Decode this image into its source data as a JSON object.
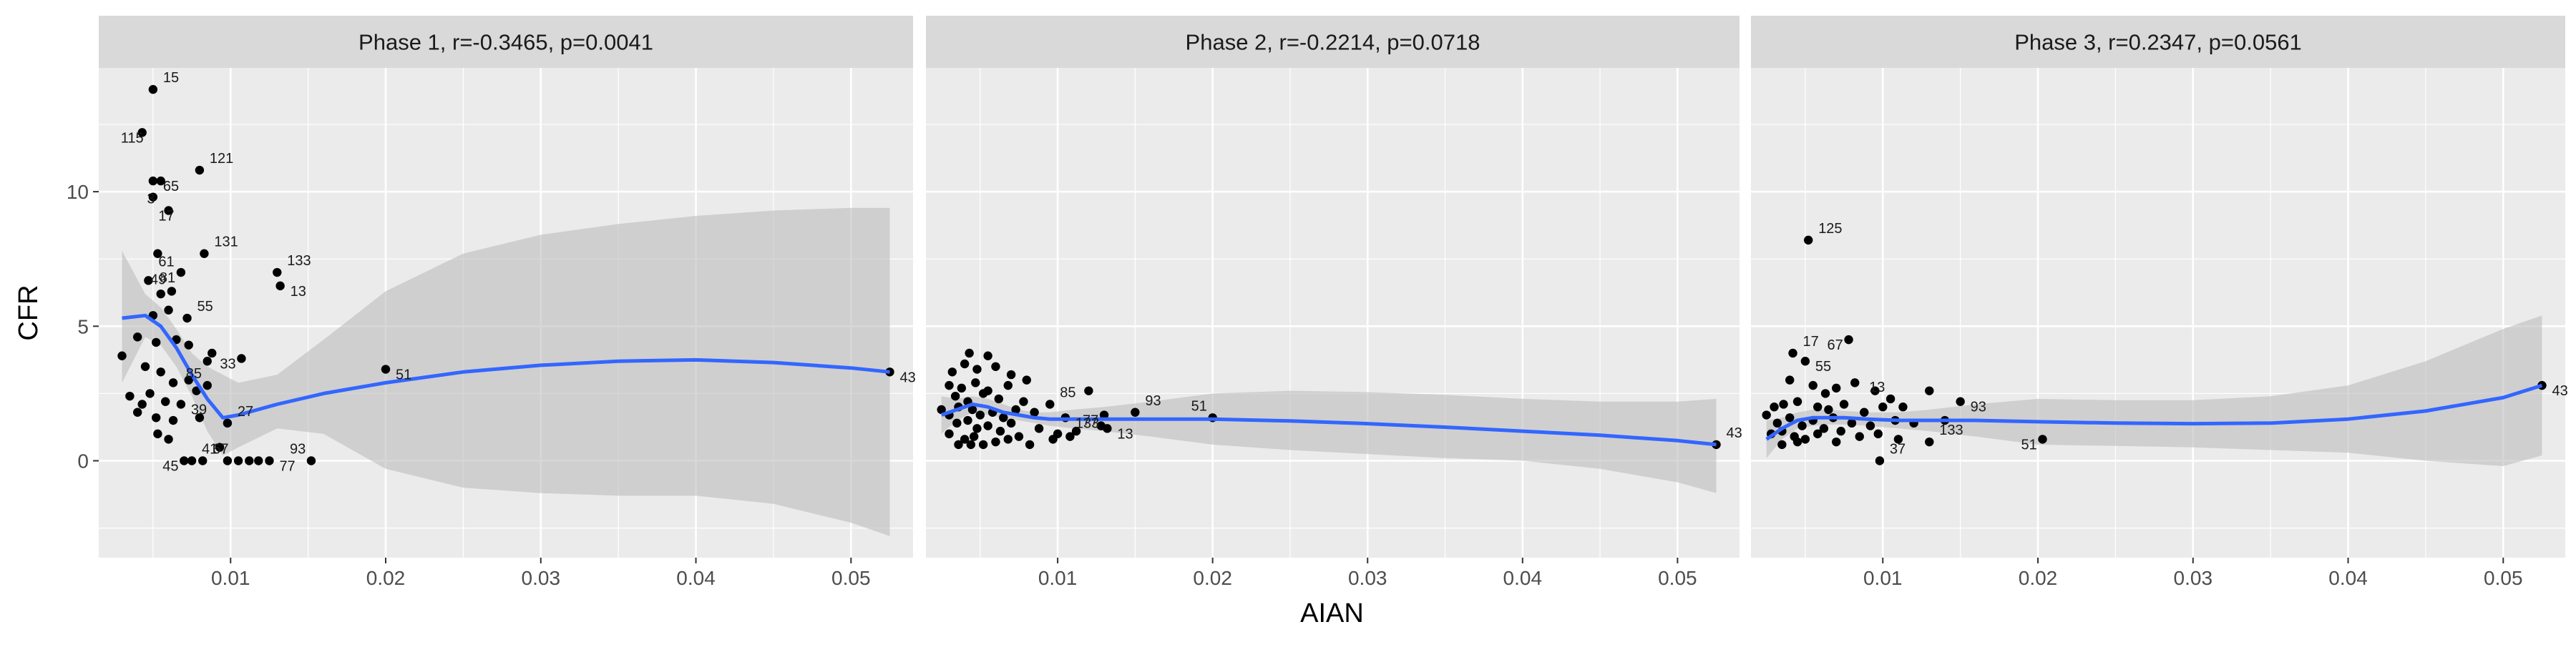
{
  "chart_data": {
    "type": "scatter",
    "layout": "three faceted panels side by side, shared y axis",
    "xlabel": "AIAN",
    "ylabel": "CFR",
    "xlim": [
      0.0015,
      0.054
    ],
    "ylim": [
      -3.6,
      14.6
    ],
    "x_ticks": [
      0.01,
      0.02,
      0.03,
      0.04,
      0.05
    ],
    "x_tick_labels": [
      "0.01",
      "0.02",
      "0.03",
      "0.04",
      "0.05"
    ],
    "y_ticks": [
      0,
      5,
      10
    ],
    "y_tick_labels": [
      "0",
      "5",
      "10"
    ],
    "grid": true,
    "theme": "grey panel background with white gridlines, grey facet strips",
    "smoother": "loess curve with shaded confidence band",
    "colors": {
      "points": "#000000",
      "smooth_line": "#3366ff",
      "band": "#bdbdbd",
      "panel_bg": "#ebebeb",
      "strip_bg": "#d9d9d9",
      "grid": "#ffffff",
      "label_text": "#1a1a1a"
    },
    "panels": [
      {
        "title": "Phase 1, r=-0.3465, p=0.0041",
        "points": [
          [
            0.005,
            13.8
          ],
          [
            0.0043,
            12.2
          ],
          [
            0.008,
            10.8
          ],
          [
            0.005,
            10.4
          ],
          [
            0.0055,
            10.4
          ],
          [
            0.005,
            9.8
          ],
          [
            0.006,
            9.3
          ],
          [
            0.0083,
            7.7
          ],
          [
            0.0068,
            7.0
          ],
          [
            0.013,
            7.0
          ],
          [
            0.0132,
            6.5
          ],
          [
            0.0053,
            7.7
          ],
          [
            0.0047,
            6.7
          ],
          [
            0.0055,
            6.2
          ],
          [
            0.0062,
            6.3
          ],
          [
            0.005,
            5.4
          ],
          [
            0.006,
            5.6
          ],
          [
            0.0072,
            5.3
          ],
          [
            0.004,
            4.6
          ],
          [
            0.0052,
            4.4
          ],
          [
            0.0065,
            4.5
          ],
          [
            0.0073,
            4.3
          ],
          [
            0.0085,
            3.7
          ],
          [
            0.0088,
            4.0
          ],
          [
            0.0107,
            3.8
          ],
          [
            0.003,
            3.9
          ],
          [
            0.0045,
            3.5
          ],
          [
            0.0055,
            3.3
          ],
          [
            0.0063,
            2.9
          ],
          [
            0.0073,
            3.0
          ],
          [
            0.0078,
            2.6
          ],
          [
            0.0085,
            2.8
          ],
          [
            0.0035,
            2.4
          ],
          [
            0.0043,
            2.1
          ],
          [
            0.0048,
            2.5
          ],
          [
            0.0058,
            2.2
          ],
          [
            0.0068,
            2.1
          ],
          [
            0.004,
            1.8
          ],
          [
            0.0052,
            1.6
          ],
          [
            0.0063,
            1.5
          ],
          [
            0.008,
            1.6
          ],
          [
            0.0098,
            1.4
          ],
          [
            0.006,
            0.8
          ],
          [
            0.0053,
            1.0
          ],
          [
            0.0093,
            0.5
          ],
          [
            0.007,
            0.0
          ],
          [
            0.0075,
            0.0
          ],
          [
            0.0082,
            0.0
          ],
          [
            0.0098,
            0.0
          ],
          [
            0.0105,
            0.0
          ],
          [
            0.0112,
            0.0
          ],
          [
            0.0118,
            0.0
          ],
          [
            0.0125,
            0.0
          ],
          [
            0.0152,
            0.0
          ],
          [
            0.02,
            3.4
          ],
          [
            0.0525,
            3.3
          ]
        ],
        "point_labels": [
          {
            "text": "15",
            "x": 0.005,
            "y": 13.8
          },
          {
            "text": "115",
            "x": 0.0043,
            "y": 12.2
          },
          {
            "text": "121",
            "x": 0.008,
            "y": 10.8
          },
          {
            "text": "65",
            "x": 0.005,
            "y": 10.4
          },
          {
            "text": "3",
            "x": 0.006,
            "y": 9.3
          },
          {
            "text": "17",
            "x": 0.0047,
            "y": 9.3
          },
          {
            "text": "131",
            "x": 0.0083,
            "y": 7.7
          },
          {
            "text": "81",
            "x": 0.0068,
            "y": 7.0
          },
          {
            "text": "133",
            "x": 0.013,
            "y": 7.0
          },
          {
            "text": "61",
            "x": 0.0047,
            "y": 7.6
          },
          {
            "text": "49",
            "x": 0.0062,
            "y": 6.3
          },
          {
            "text": "13",
            "x": 0.0132,
            "y": 6.5
          },
          {
            "text": "55",
            "x": 0.0072,
            "y": 5.3
          },
          {
            "text": "33",
            "x": 0.0107,
            "y": 3.8
          },
          {
            "text": "27",
            "x": 0.0098,
            "y": 1.4
          },
          {
            "text": "51",
            "x": 0.02,
            "y": 3.4
          },
          {
            "text": "85",
            "x": 0.0085,
            "y": 2.8
          },
          {
            "text": "39",
            "x": 0.0068,
            "y": 2.1
          },
          {
            "text": "41",
            "x": 0.0075,
            "y": 0.0
          },
          {
            "text": "45",
            "x": 0.007,
            "y": 0.0
          },
          {
            "text": "67",
            "x": 0.0082,
            "y": 0.0
          },
          {
            "text": "77",
            "x": 0.0125,
            "y": 0.0
          },
          {
            "text": "93",
            "x": 0.0152,
            "y": 0.0
          },
          {
            "text": "43",
            "x": 0.0525,
            "y": 3.3
          }
        ],
        "smooth": {
          "x": [
            0.003,
            0.0045,
            0.0055,
            0.0065,
            0.0075,
            0.0085,
            0.0095,
            0.0105,
            0.013,
            0.016,
            0.02,
            0.025,
            0.03,
            0.035,
            0.04,
            0.045,
            0.05,
            0.0525
          ],
          "y": [
            5.3,
            5.4,
            5.0,
            4.2,
            3.2,
            2.3,
            1.6,
            1.7,
            2.1,
            2.5,
            2.9,
            3.3,
            3.55,
            3.7,
            3.75,
            3.65,
            3.45,
            3.3
          ],
          "lower": [
            2.9,
            4.6,
            4.3,
            3.5,
            2.4,
            1.1,
            0.2,
            0.5,
            1.2,
            1.0,
            -0.3,
            -1.0,
            -1.2,
            -1.3,
            -1.3,
            -1.6,
            -2.3,
            -2.8
          ],
          "upper": [
            7.8,
            6.2,
            5.7,
            4.9,
            4.0,
            3.5,
            3.2,
            2.9,
            3.2,
            4.5,
            6.3,
            7.7,
            8.4,
            8.8,
            9.1,
            9.3,
            9.4,
            9.4
          ]
        }
      },
      {
        "title": "Phase 2, r=-0.2214, p=0.0718",
        "points": [
          [
            0.004,
            3.6
          ],
          [
            0.0043,
            4.0
          ],
          [
            0.0055,
            3.9
          ],
          [
            0.0032,
            3.3
          ],
          [
            0.0048,
            3.4
          ],
          [
            0.006,
            3.5
          ],
          [
            0.007,
            3.2
          ],
          [
            0.008,
            3.0
          ],
          [
            0.003,
            2.8
          ],
          [
            0.0038,
            2.7
          ],
          [
            0.0047,
            2.9
          ],
          [
            0.0055,
            2.6
          ],
          [
            0.0068,
            2.8
          ],
          [
            0.012,
            2.6
          ],
          [
            0.0034,
            2.4
          ],
          [
            0.0042,
            2.2
          ],
          [
            0.0052,
            2.5
          ],
          [
            0.0062,
            2.3
          ],
          [
            0.0078,
            2.2
          ],
          [
            0.0095,
            2.1
          ],
          [
            0.0025,
            1.9
          ],
          [
            0.003,
            1.7
          ],
          [
            0.0036,
            2.0
          ],
          [
            0.0045,
            1.9
          ],
          [
            0.005,
            1.7
          ],
          [
            0.0058,
            1.8
          ],
          [
            0.0065,
            1.6
          ],
          [
            0.0073,
            1.9
          ],
          [
            0.0085,
            1.8
          ],
          [
            0.0105,
            1.6
          ],
          [
            0.013,
            1.7
          ],
          [
            0.015,
            1.8
          ],
          [
            0.0035,
            1.4
          ],
          [
            0.0042,
            1.5
          ],
          [
            0.0048,
            1.2
          ],
          [
            0.0055,
            1.3
          ],
          [
            0.0063,
            1.1
          ],
          [
            0.007,
            1.4
          ],
          [
            0.0088,
            1.2
          ],
          [
            0.01,
            1.0
          ],
          [
            0.0112,
            1.1
          ],
          [
            0.0128,
            1.3
          ],
          [
            0.003,
            1.0
          ],
          [
            0.004,
            0.8
          ],
          [
            0.0046,
            0.9
          ],
          [
            0.0052,
            0.6
          ],
          [
            0.006,
            0.7
          ],
          [
            0.0068,
            0.8
          ],
          [
            0.0075,
            0.9
          ],
          [
            0.0082,
            0.6
          ],
          [
            0.0097,
            0.8
          ],
          [
            0.0108,
            0.9
          ],
          [
            0.0036,
            0.6
          ],
          [
            0.0044,
            0.6
          ],
          [
            0.0132,
            1.2
          ],
          [
            0.02,
            1.6
          ],
          [
            0.0525,
            0.6
          ]
        ],
        "point_labels": [
          {
            "text": "85",
            "x": 0.0095,
            "y": 2.1
          },
          {
            "text": "77",
            "x": 0.013,
            "y": 1.7
          },
          {
            "text": "93",
            "x": 0.015,
            "y": 1.8
          },
          {
            "text": "133",
            "x": 0.0105,
            "y": 1.6
          },
          {
            "text": "51",
            "x": 0.02,
            "y": 1.6
          },
          {
            "text": "13",
            "x": 0.0132,
            "y": 1.2
          },
          {
            "text": "43",
            "x": 0.0525,
            "y": 0.6
          }
        ],
        "smooth": {
          "x": [
            0.0025,
            0.0035,
            0.0045,
            0.0055,
            0.0065,
            0.0075,
            0.0085,
            0.0095,
            0.011,
            0.013,
            0.016,
            0.02,
            0.025,
            0.03,
            0.035,
            0.04,
            0.045,
            0.05,
            0.0525
          ],
          "y": [
            1.7,
            1.9,
            2.1,
            2.0,
            1.8,
            1.7,
            1.6,
            1.55,
            1.55,
            1.55,
            1.55,
            1.55,
            1.48,
            1.38,
            1.25,
            1.1,
            0.95,
            0.75,
            0.6
          ],
          "lower": [
            1.0,
            1.5,
            1.8,
            1.7,
            1.6,
            1.5,
            1.4,
            1.3,
            1.2,
            1.1,
            0.9,
            0.6,
            0.4,
            0.25,
            0.1,
            0.0,
            -0.3,
            -0.8,
            -1.2
          ],
          "upper": [
            2.4,
            2.3,
            2.4,
            2.3,
            2.1,
            1.9,
            1.8,
            1.8,
            1.9,
            2.0,
            2.2,
            2.5,
            2.6,
            2.55,
            2.45,
            2.3,
            2.2,
            2.2,
            2.3
          ]
        }
      },
      {
        "title": "Phase 3, r=0.2347, p=0.0561",
        "points": [
          [
            0.0052,
            8.2
          ],
          [
            0.0078,
            4.5
          ],
          [
            0.0042,
            4.0
          ],
          [
            0.005,
            3.7
          ],
          [
            0.004,
            3.0
          ],
          [
            0.0055,
            2.8
          ],
          [
            0.0063,
            2.5
          ],
          [
            0.007,
            2.7
          ],
          [
            0.0082,
            2.9
          ],
          [
            0.0095,
            2.6
          ],
          [
            0.0105,
            2.3
          ],
          [
            0.0113,
            2.0
          ],
          [
            0.013,
            2.6
          ],
          [
            0.015,
            2.2
          ],
          [
            0.003,
            2.0
          ],
          [
            0.0036,
            2.1
          ],
          [
            0.0045,
            2.2
          ],
          [
            0.0058,
            2.0
          ],
          [
            0.0065,
            1.9
          ],
          [
            0.0075,
            2.1
          ],
          [
            0.0088,
            1.8
          ],
          [
            0.01,
            2.0
          ],
          [
            0.0025,
            1.7
          ],
          [
            0.0032,
            1.4
          ],
          [
            0.004,
            1.6
          ],
          [
            0.0048,
            1.3
          ],
          [
            0.0055,
            1.5
          ],
          [
            0.0062,
            1.2
          ],
          [
            0.0068,
            1.6
          ],
          [
            0.008,
            1.4
          ],
          [
            0.0092,
            1.3
          ],
          [
            0.0108,
            1.5
          ],
          [
            0.012,
            1.4
          ],
          [
            0.014,
            1.5
          ],
          [
            0.0028,
            1.0
          ],
          [
            0.0035,
            1.1
          ],
          [
            0.0043,
            0.9
          ],
          [
            0.005,
            0.8
          ],
          [
            0.0058,
            1.0
          ],
          [
            0.0073,
            1.1
          ],
          [
            0.0085,
            0.9
          ],
          [
            0.0097,
            1.0
          ],
          [
            0.011,
            0.8
          ],
          [
            0.0035,
            0.6
          ],
          [
            0.0045,
            0.7
          ],
          [
            0.007,
            0.7
          ],
          [
            0.013,
            0.7
          ],
          [
            0.0098,
            0.0
          ],
          [
            0.0203,
            0.8
          ],
          [
            0.0525,
            2.8
          ]
        ],
        "point_labels": [
          {
            "text": "125",
            "x": 0.0052,
            "y": 8.2
          },
          {
            "text": "67",
            "x": 0.0078,
            "y": 4.5
          },
          {
            "text": "17",
            "x": 0.0042,
            "y": 4.0
          },
          {
            "text": "55",
            "x": 0.005,
            "y": 3.7
          },
          {
            "text": "13",
            "x": 0.0105,
            "y": 2.3
          },
          {
            "text": "93",
            "x": 0.015,
            "y": 2.2
          },
          {
            "text": "133",
            "x": 0.013,
            "y": 0.7
          },
          {
            "text": "51",
            "x": 0.0203,
            "y": 0.8
          },
          {
            "text": "37",
            "x": 0.0098,
            "y": 0.0
          },
          {
            "text": "43",
            "x": 0.0525,
            "y": 2.8
          }
        ],
        "smooth": {
          "x": [
            0.0025,
            0.0035,
            0.0045,
            0.0055,
            0.0065,
            0.0075,
            0.009,
            0.011,
            0.013,
            0.016,
            0.02,
            0.025,
            0.03,
            0.035,
            0.04,
            0.045,
            0.05,
            0.0525
          ],
          "y": [
            0.8,
            1.2,
            1.5,
            1.6,
            1.6,
            1.6,
            1.55,
            1.5,
            1.5,
            1.5,
            1.45,
            1.4,
            1.38,
            1.4,
            1.55,
            1.85,
            2.35,
            2.8
          ],
          "lower": [
            0.1,
            0.8,
            1.2,
            1.3,
            1.35,
            1.35,
            1.3,
            1.2,
            1.1,
            0.9,
            0.6,
            0.55,
            0.5,
            0.4,
            0.3,
            0.0,
            -0.2,
            0.2
          ],
          "upper": [
            1.5,
            1.6,
            1.8,
            1.9,
            1.9,
            1.85,
            1.8,
            1.8,
            1.9,
            2.1,
            2.3,
            2.25,
            2.25,
            2.4,
            2.8,
            3.7,
            4.9,
            5.4
          ]
        }
      }
    ]
  }
}
